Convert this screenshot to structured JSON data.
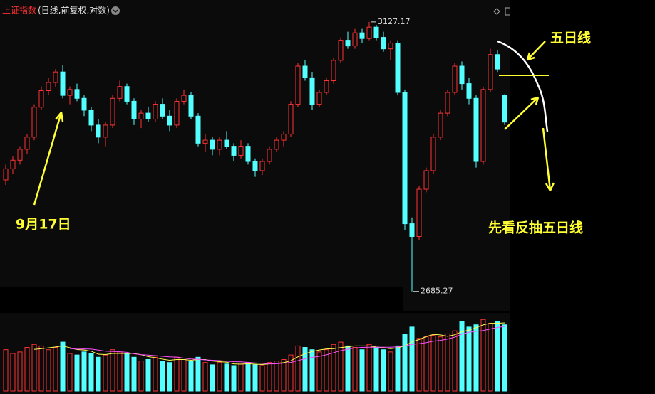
{
  "chart_data": {
    "type": "candlestick",
    "title": "上证指数",
    "subtitle": "(日线,前复权,对数)",
    "log_scale": true,
    "ylim": [
      2656,
      3151
    ],
    "up_color": "#ff3232",
    "down_color": "#54ffff",
    "ohlc": [
      [
        2860,
        2885,
        2852,
        2878
      ],
      [
        2878,
        2898,
        2870,
        2892
      ],
      [
        2892,
        2915,
        2885,
        2910
      ],
      [
        2910,
        2935,
        2902,
        2930
      ],
      [
        2930,
        2985,
        2925,
        2980
      ],
      [
        2980,
        3015,
        2975,
        3008
      ],
      [
        3008,
        3030,
        3000,
        3022
      ],
      [
        3022,
        3045,
        3015,
        3040
      ],
      [
        3040,
        3052,
        2995,
        3000
      ],
      [
        3000,
        3015,
        2985,
        3010
      ],
      [
        3010,
        3020,
        2990,
        2995
      ],
      [
        2995,
        3000,
        2965,
        2975
      ],
      [
        2975,
        2980,
        2940,
        2950
      ],
      [
        2950,
        2960,
        2920,
        2930
      ],
      [
        2930,
        2955,
        2915,
        2950
      ],
      [
        2950,
        3000,
        2945,
        2995
      ],
      [
        2995,
        3025,
        2990,
        3015
      ],
      [
        3015,
        3020,
        2985,
        2990
      ],
      [
        2990,
        2995,
        2950,
        2960
      ],
      [
        2960,
        2975,
        2945,
        2970
      ],
      [
        2970,
        2980,
        2955,
        2960
      ],
      [
        2960,
        2990,
        2955,
        2985
      ],
      [
        2985,
        2995,
        2960,
        2965
      ],
      [
        2965,
        2975,
        2940,
        2950
      ],
      [
        2950,
        2995,
        2945,
        2990
      ],
      [
        2990,
        3010,
        2985,
        3000
      ],
      [
        3000,
        3005,
        2960,
        2965
      ],
      [
        2965,
        2970,
        2915,
        2920
      ],
      [
        2920,
        2935,
        2905,
        2925
      ],
      [
        2925,
        2930,
        2900,
        2910
      ],
      [
        2910,
        2930,
        2900,
        2925
      ],
      [
        2925,
        2940,
        2910,
        2915
      ],
      [
        2915,
        2920,
        2890,
        2900
      ],
      [
        2900,
        2925,
        2895,
        2915
      ],
      [
        2915,
        2920,
        2885,
        2890
      ],
      [
        2890,
        2895,
        2865,
        2875
      ],
      [
        2875,
        2895,
        2868,
        2890
      ],
      [
        2890,
        2915,
        2885,
        2910
      ],
      [
        2910,
        2930,
        2905,
        2925
      ],
      [
        2925,
        2940,
        2915,
        2935
      ],
      [
        2935,
        2990,
        2930,
        2985
      ],
      [
        2985,
        3055,
        2980,
        3050
      ],
      [
        3050,
        3060,
        3025,
        3030
      ],
      [
        3030,
        3040,
        2975,
        2985
      ],
      [
        2985,
        3010,
        2980,
        3005
      ],
      [
        3005,
        3030,
        3000,
        3025
      ],
      [
        3025,
        3065,
        3020,
        3060
      ],
      [
        3060,
        3100,
        3055,
        3095
      ],
      [
        3095,
        3110,
        3080,
        3085
      ],
      [
        3085,
        3115,
        3080,
        3108
      ],
      [
        3108,
        3115,
        3090,
        3098
      ],
      [
        3098,
        3127.17,
        3095,
        3118
      ],
      [
        3118,
        3122,
        3095,
        3100
      ],
      [
        3100,
        3110,
        3075,
        3080
      ],
      [
        3080,
        3095,
        3060,
        3090
      ],
      [
        3090,
        3095,
        3000,
        3005
      ],
      [
        3005,
        3010,
        2780,
        2790
      ],
      [
        2790,
        2800,
        2685.27,
        2770
      ],
      [
        2770,
        2850,
        2765,
        2845
      ],
      [
        2845,
        2880,
        2840,
        2875
      ],
      [
        2875,
        2935,
        2870,
        2930
      ],
      [
        2930,
        2975,
        2925,
        2970
      ],
      [
        2970,
        3010,
        2965,
        3005
      ],
      [
        3005,
        3055,
        3000,
        3050
      ],
      [
        3050,
        3058,
        3010,
        3020
      ],
      [
        3020,
        3030,
        2985,
        2995
      ],
      [
        2995,
        3000,
        2880,
        2890
      ],
      [
        2890,
        3015,
        2885,
        3010
      ],
      [
        3010,
        3080,
        3005,
        3070
      ],
      [
        3070,
        3078,
        3040,
        3045
      ],
      [
        3000,
        3002,
        2950,
        2955
      ]
    ],
    "volumes": [
      55,
      50,
      52,
      58,
      62,
      60,
      55,
      58,
      65,
      50,
      48,
      52,
      50,
      45,
      48,
      55,
      52,
      50,
      45,
      40,
      42,
      45,
      40,
      38,
      45,
      42,
      40,
      45,
      38,
      35,
      38,
      36,
      34,
      36,
      38,
      35,
      34,
      38,
      40,
      42,
      48,
      60,
      58,
      55,
      52,
      55,
      62,
      65,
      60,
      58,
      55,
      62,
      58,
      55,
      52,
      60,
      75,
      85,
      70,
      72,
      74,
      72,
      76,
      80,
      92,
      85,
      88,
      95,
      90,
      92,
      88
    ],
    "volume_ylim": [
      0,
      100
    ],
    "volume_ma": [
      {
        "period": 5,
        "color": "#ffff50"
      },
      {
        "period": 10,
        "color": "#ff50ff"
      }
    ],
    "annotations": [
      "五日线",
      "9月17日",
      "先看反抽五日线"
    ]
  }
}
